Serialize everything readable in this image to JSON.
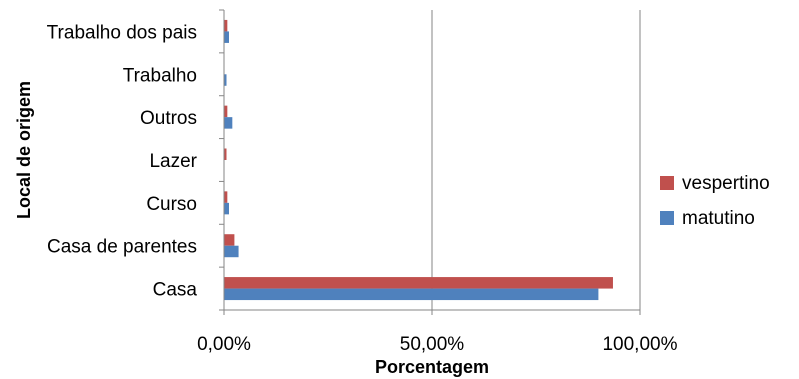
{
  "chart_data": {
    "type": "bar",
    "orientation": "horizontal",
    "categories": [
      "Casa",
      "Casa de parentes",
      "Curso",
      "Lazer",
      "Outros",
      "Trabalho",
      "Trabalho dos pais"
    ],
    "series": [
      {
        "name": "matutino",
        "color": "#4f81bd",
        "values": [
          0.9,
          0.035,
          0.012,
          0.0,
          0.02,
          0.006,
          0.012
        ]
      },
      {
        "name": "vespertino",
        "color": "#c0504d",
        "values": [
          0.935,
          0.025,
          0.008,
          0.006,
          0.008,
          0.0,
          0.008
        ]
      }
    ],
    "xlabel": "Porcentagem",
    "ylabel": "Local de origem",
    "xlim": [
      0,
      1
    ],
    "xticks": [
      "0,00%",
      "50,00%",
      "100,00%"
    ],
    "grid": true,
    "legend_position": "right"
  }
}
